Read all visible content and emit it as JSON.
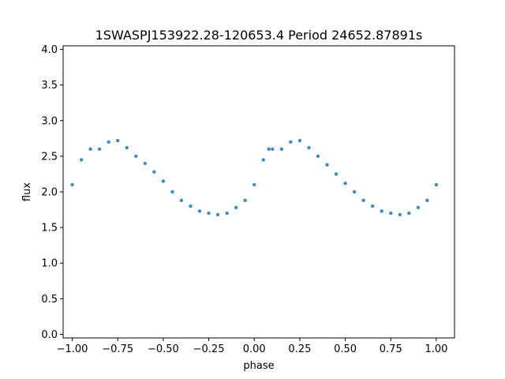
{
  "chart_data": {
    "type": "scatter",
    "title": "1SWASPJ153922.28-120653.4 Period 24652.87891s",
    "xlabel": "phase",
    "ylabel": "flux",
    "xlim": [
      -1.05,
      1.1
    ],
    "ylim": [
      -0.05,
      4.05
    ],
    "x_ticks": [
      -1.0,
      -0.75,
      -0.5,
      -0.25,
      0.0,
      0.25,
      0.5,
      0.75,
      1.0
    ],
    "x_tick_labels": [
      "−1.00",
      "−0.75",
      "−0.50",
      "−0.25",
      "0.00",
      "0.25",
      "0.50",
      "0.75",
      "1.00"
    ],
    "y_ticks": [
      0.0,
      0.5,
      1.0,
      1.5,
      2.0,
      2.5,
      3.0,
      3.5,
      4.0
    ],
    "y_tick_labels": [
      "0.0",
      "0.5",
      "1.0",
      "1.5",
      "2.0",
      "2.5",
      "3.0",
      "3.5",
      "4.0"
    ],
    "grid": false,
    "marker_color": "#1f77b4",
    "series": [
      {
        "x": [
          -1.0,
          -0.95,
          -0.9,
          -0.85,
          -0.8,
          -0.75,
          -0.7,
          -0.65,
          -0.6,
          -0.55,
          -0.5,
          -0.45,
          -0.4,
          -0.35,
          -0.3,
          -0.25,
          -0.2,
          -0.15,
          -0.1,
          -0.05,
          0.0,
          0.05,
          0.08,
          0.1,
          0.15,
          0.2,
          0.25,
          0.3,
          0.35,
          0.4,
          0.45,
          0.5,
          0.55,
          0.6,
          0.65,
          0.7,
          0.75,
          0.8,
          0.85,
          0.9,
          0.95,
          1.0
        ],
        "y": [
          2.1,
          2.45,
          2.6,
          2.6,
          2.7,
          2.72,
          2.62,
          2.5,
          2.4,
          2.28,
          2.15,
          2.0,
          1.88,
          1.8,
          1.73,
          1.7,
          1.68,
          1.7,
          1.78,
          1.88,
          2.1,
          2.45,
          2.6,
          2.6,
          2.6,
          2.7,
          2.72,
          2.62,
          2.5,
          2.38,
          2.25,
          2.12,
          2.0,
          1.88,
          1.8,
          1.73,
          1.7,
          1.68,
          1.7,
          1.78,
          1.88,
          2.1
        ]
      }
    ]
  }
}
